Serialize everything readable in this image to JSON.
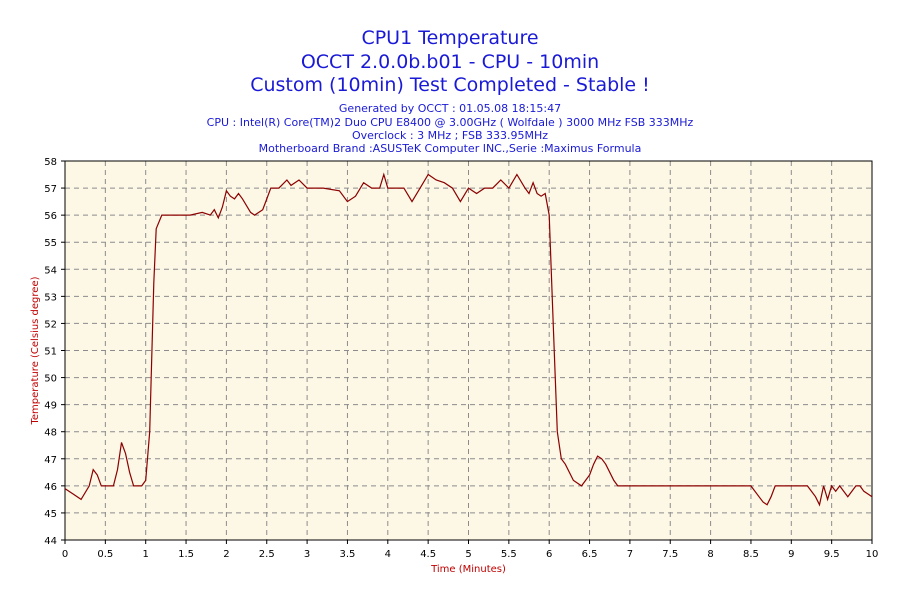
{
  "chart_data": {
    "type": "line",
    "title": "CPU1 Temperature",
    "subtitle": "OCCT 2.0.0b.b01 - CPU - 10min",
    "status": "Custom (10min) Test Completed - Stable !",
    "info": [
      "Generated by OCCT : 01.05.08 18:15:47",
      "CPU : Intel(R) Core(TM)2 Duo CPU E8400 @ 3.00GHz ( Wolfdale ) 3000 MHz FSB 333MHz",
      "Overclock : 3 MHz ; FSB 333.95MHz",
      "Motherboard Brand :ASUSTeK Computer INC.,Serie :Maximus Formula"
    ],
    "xlabel": "Time (Minutes)",
    "ylabel": "Temperature (Celsius degree)",
    "xlim": [
      0,
      10
    ],
    "ylim": [
      44,
      58
    ],
    "xticks": [
      0,
      0.5,
      1,
      1.5,
      2,
      2.5,
      3,
      3.5,
      4,
      4.5,
      5,
      5.5,
      6,
      6.5,
      7,
      7.5,
      8,
      8.5,
      9,
      9.5,
      10
    ],
    "yticks": [
      44,
      45,
      46,
      47,
      48,
      49,
      50,
      51,
      52,
      53,
      54,
      55,
      56,
      57,
      58
    ],
    "grid": true,
    "line_color": "#8b0000",
    "plot_background": "#fdf7e6",
    "series": [
      {
        "x": [
          0,
          0.1,
          0.2,
          0.3,
          0.35,
          0.4,
          0.45,
          0.5,
          0.6,
          0.65,
          0.7,
          0.75,
          0.8,
          0.85,
          0.9,
          0.95,
          1.0,
          1.05,
          1.1,
          1.13,
          1.2,
          1.3,
          1.4,
          1.5,
          1.55,
          1.7,
          1.8,
          1.85,
          1.9,
          1.95,
          2.0,
          2.05,
          2.1,
          2.15,
          2.2,
          2.3,
          2.35,
          2.45,
          2.5,
          2.55,
          2.6,
          2.65,
          2.75,
          2.8,
          2.9,
          3.0,
          3.2,
          3.4,
          3.5,
          3.6,
          3.7,
          3.8,
          3.9,
          3.95,
          4.0,
          4.05,
          4.2,
          4.3,
          4.4,
          4.5,
          4.6,
          4.7,
          4.8,
          4.9,
          5.0,
          5.1,
          5.2,
          5.3,
          5.4,
          5.5,
          5.6,
          5.7,
          5.75,
          5.8,
          5.85,
          5.9,
          5.95,
          6.0,
          6.05,
          6.1,
          6.15,
          6.2,
          6.3,
          6.4,
          6.5,
          6.55,
          6.6,
          6.65,
          6.7,
          6.8,
          6.85,
          7.0,
          7.5,
          8.0,
          8.5,
          8.6,
          8.65,
          8.7,
          8.75,
          8.8,
          9.0,
          9.2,
          9.3,
          9.35,
          9.4,
          9.45,
          9.5,
          9.55,
          9.6,
          9.7,
          9.8,
          9.85,
          9.9,
          9.95,
          10.0
        ],
        "values": [
          45.9,
          45.7,
          45.5,
          46.0,
          46.6,
          46.4,
          46.0,
          46.0,
          46.0,
          46.6,
          47.6,
          47.2,
          46.5,
          46.0,
          46.0,
          46.0,
          46.2,
          48.0,
          53.5,
          55.5,
          56.0,
          56.0,
          56.0,
          56.0,
          56.0,
          56.1,
          56.0,
          56.2,
          55.9,
          56.3,
          56.9,
          56.7,
          56.6,
          56.8,
          56.6,
          56.1,
          56.0,
          56.2,
          56.6,
          57.0,
          57.0,
          57.0,
          57.3,
          57.1,
          57.3,
          57.0,
          57.0,
          56.9,
          56.5,
          56.7,
          57.2,
          57.0,
          57.0,
          57.5,
          57.0,
          57.0,
          57.0,
          56.5,
          57.0,
          57.5,
          57.3,
          57.2,
          57.0,
          56.5,
          57.0,
          56.8,
          57.0,
          57.0,
          57.3,
          57.0,
          57.5,
          57.0,
          56.8,
          57.2,
          56.8,
          56.7,
          56.8,
          56.0,
          52.0,
          48.0,
          47.0,
          46.8,
          46.2,
          46.0,
          46.4,
          46.8,
          47.1,
          47.0,
          46.8,
          46.2,
          46.0,
          46.0,
          46.0,
          46.0,
          46.0,
          45.6,
          45.4,
          45.3,
          45.6,
          46.0,
          46.0,
          46.0,
          45.6,
          45.3,
          46.0,
          45.5,
          46.0,
          45.8,
          46.0,
          45.6,
          46.0,
          46.0,
          45.8,
          45.7,
          45.6
        ]
      }
    ]
  }
}
